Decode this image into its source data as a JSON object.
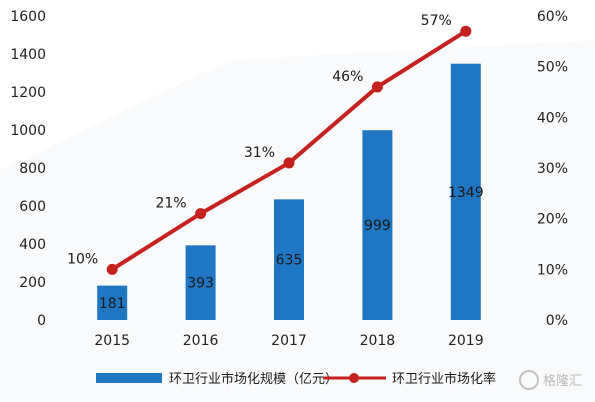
{
  "chart_data": {
    "type": "bar",
    "categories": [
      "2015",
      "2016",
      "2017",
      "2018",
      "2019"
    ],
    "series": [
      {
        "name": "环卫行业市场化规模（亿元）",
        "type": "bar",
        "axis": "left",
        "values": [
          181,
          393,
          635,
          999,
          1349
        ],
        "color": "#1f77c4"
      },
      {
        "name": "环卫行业市场化率",
        "type": "line",
        "axis": "right",
        "values": [
          10,
          21,
          31,
          46,
          57
        ],
        "color": "#c5221f"
      }
    ],
    "left_axis": {
      "min": 0,
      "max": 1600,
      "ticks": [
        "0",
        "200",
        "400",
        "600",
        "800",
        "1000",
        "1200",
        "1400",
        "1600"
      ]
    },
    "right_axis": {
      "min": 0,
      "max": 60,
      "ticks": [
        "0%",
        "10%",
        "20%",
        "30%",
        "40%",
        "50%",
        "60%"
      ]
    },
    "bar_labels": [
      "181",
      "393",
      "635",
      "999",
      "1349"
    ],
    "point_labels": [
      "10%",
      "21%",
      "31%",
      "46%",
      "57%"
    ],
    "grid": false,
    "legend_position": "bottom"
  },
  "legend": {
    "bar_label": "环卫行业市场化规模（亿元）",
    "line_label": "环卫行业市场化率"
  },
  "watermark": {
    "text": "格隆汇"
  }
}
